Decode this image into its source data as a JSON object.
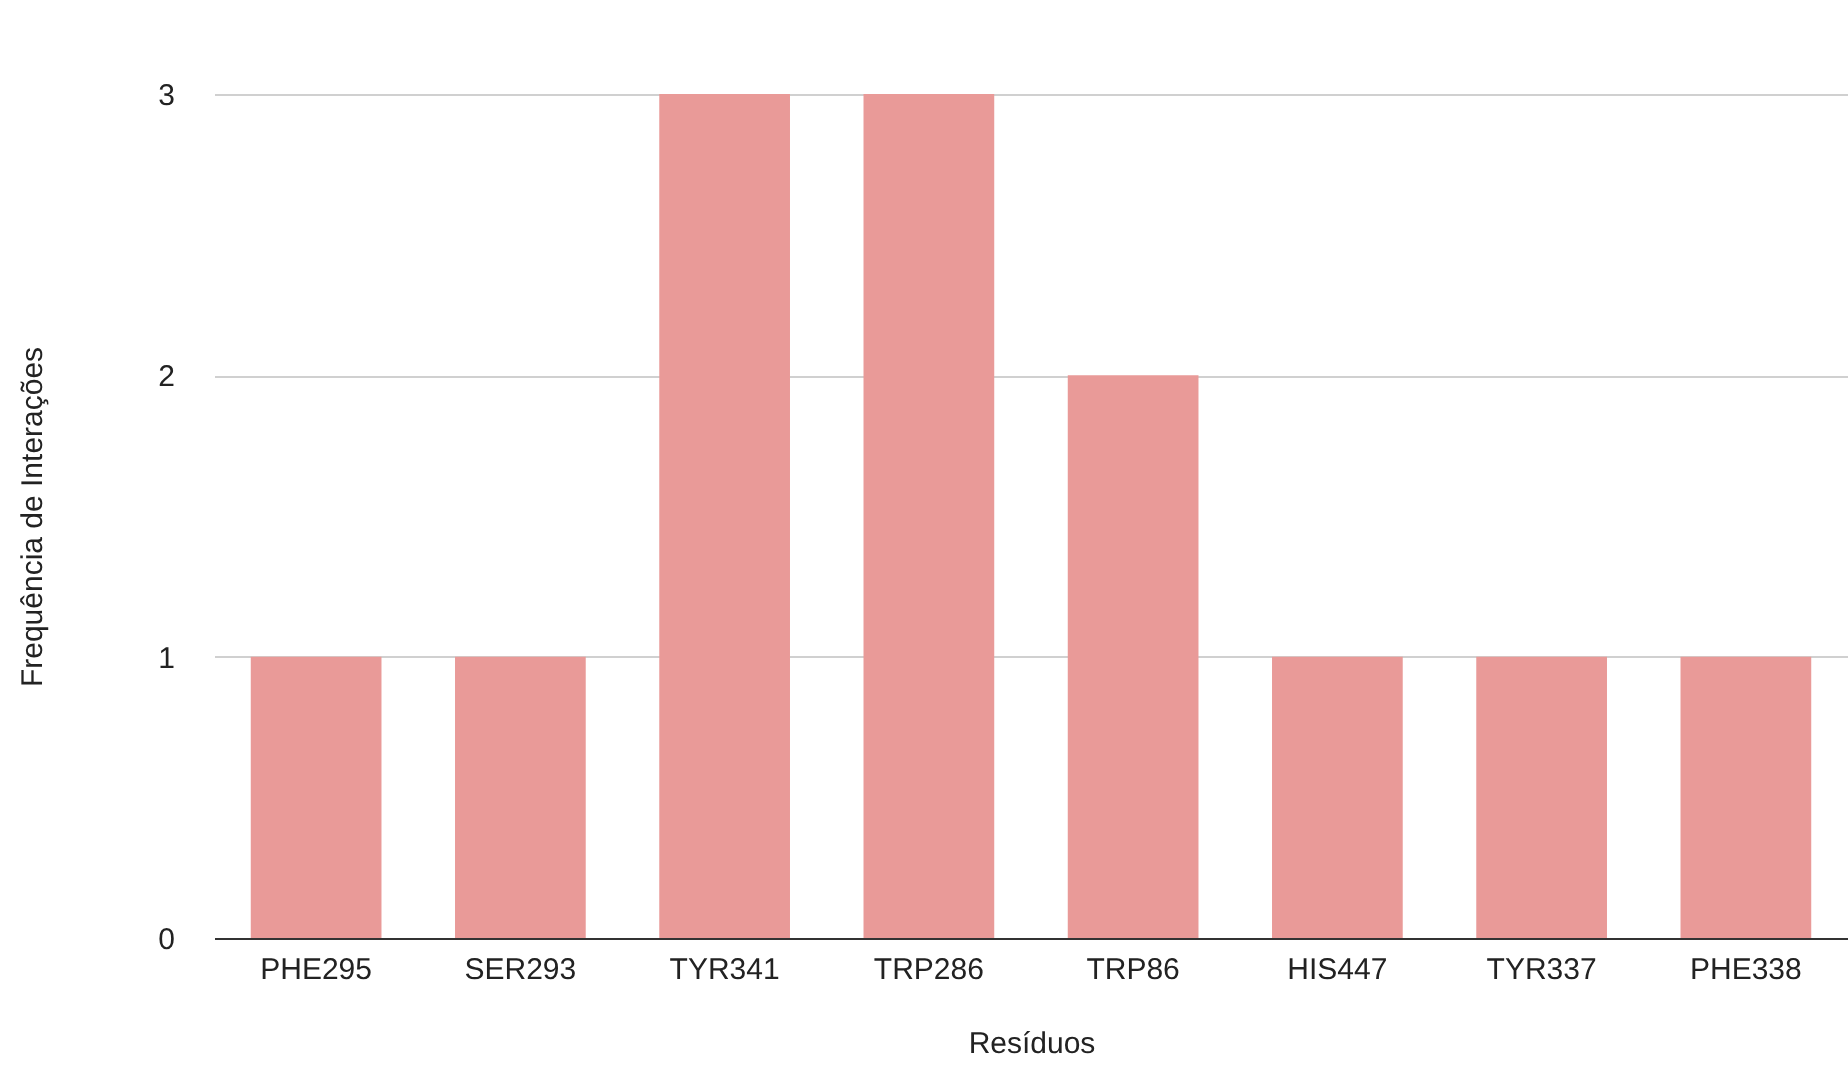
{
  "chart_data": {
    "type": "bar",
    "xlabel": "Resíduos",
    "ylabel": "Frequência de Interações",
    "categories": [
      "PHE295",
      "SER293",
      "TYR341",
      "TRP286",
      "TRP86",
      "HIS447",
      "TYR337",
      "PHE338"
    ],
    "values": [
      1,
      1,
      3,
      3,
      2,
      1,
      1,
      1
    ],
    "color": "#e99a98",
    "ylim": [
      0,
      3
    ],
    "yticks": [
      0,
      1,
      2,
      3
    ],
    "grid": "y"
  }
}
